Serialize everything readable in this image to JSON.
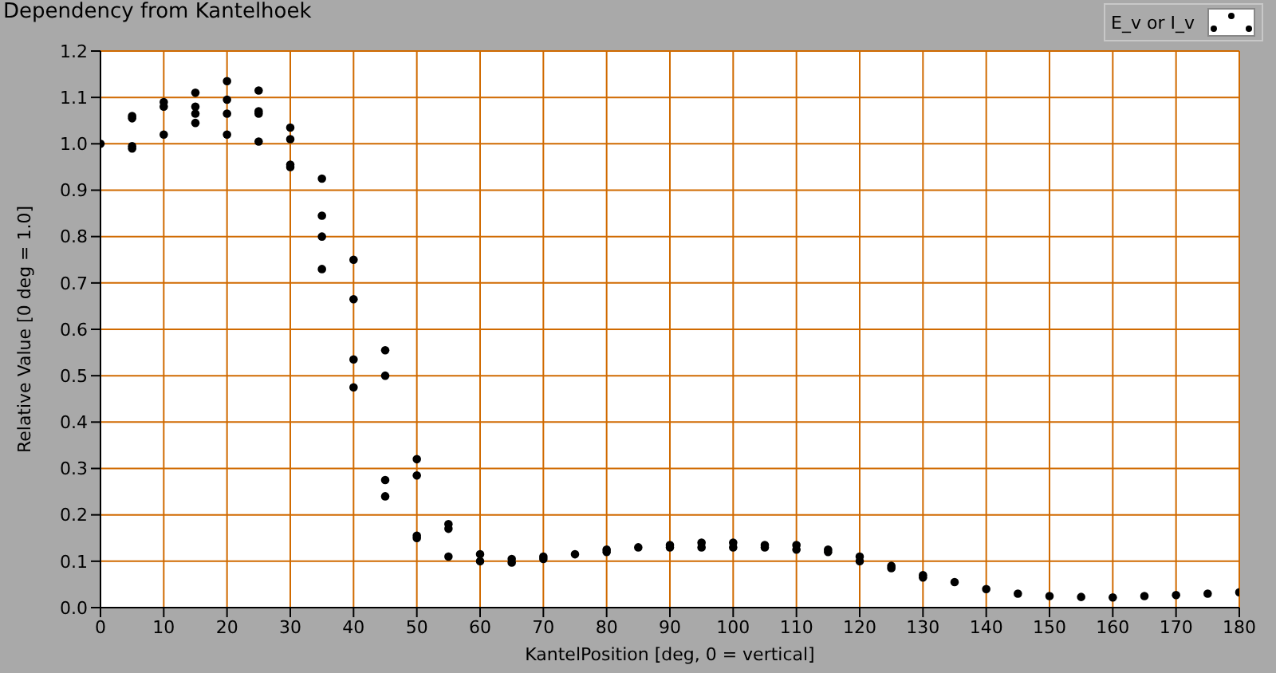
{
  "chart_data": {
    "type": "scatter",
    "title": "Dependency from Kantelhoek",
    "xlabel": "KantelPosition [deg, 0 = vertical]",
    "ylabel": "Relative Value [0 deg = 1.0]",
    "series": [
      {
        "name": "E_v or I_v",
        "color": "#000000",
        "x": [
          0,
          5,
          5,
          5,
          5,
          10,
          10,
          10,
          15,
          15,
          15,
          15,
          20,
          20,
          20,
          20,
          25,
          25,
          25,
          25,
          30,
          30,
          30,
          30,
          35,
          35,
          35,
          35,
          40,
          40,
          40,
          40,
          45,
          45,
          45,
          45,
          50,
          50,
          50,
          50,
          55,
          55,
          55,
          60,
          60,
          65,
          65,
          70,
          70,
          75,
          80,
          80,
          85,
          90,
          90,
          95,
          95,
          100,
          100,
          105,
          105,
          110,
          110,
          115,
          115,
          120,
          120,
          125,
          125,
          130,
          130,
          135,
          140,
          145,
          150,
          155,
          160,
          165,
          170,
          175,
          180
        ],
        "values": [
          1.0,
          1.06,
          1.055,
          0.99,
          0.995,
          1.09,
          1.08,
          1.02,
          1.11,
          1.08,
          1.065,
          1.045,
          1.135,
          1.095,
          1.065,
          1.02,
          1.115,
          1.07,
          1.065,
          1.005,
          1.035,
          1.01,
          0.955,
          0.95,
          0.925,
          0.845,
          0.8,
          0.73,
          0.75,
          0.665,
          0.535,
          0.475,
          0.555,
          0.5,
          0.275,
          0.24,
          0.32,
          0.285,
          0.155,
          0.15,
          0.18,
          0.17,
          0.11,
          0.115,
          0.1,
          0.105,
          0.097,
          0.11,
          0.105,
          0.115,
          0.125,
          0.12,
          0.13,
          0.135,
          0.13,
          0.14,
          0.13,
          0.14,
          0.13,
          0.135,
          0.13,
          0.135,
          0.125,
          0.125,
          0.12,
          0.11,
          0.1,
          0.09,
          0.085,
          0.07,
          0.065,
          0.055,
          0.04,
          0.03,
          0.025,
          0.023,
          0.022,
          0.025,
          0.027,
          0.03,
          0.033
        ]
      }
    ],
    "marker": "circle",
    "xlim": [
      0,
      180
    ],
    "xticks": [
      0,
      10,
      20,
      30,
      40,
      50,
      60,
      70,
      80,
      90,
      100,
      110,
      120,
      130,
      140,
      150,
      160,
      170,
      180
    ],
    "ylim": [
      0,
      1.2
    ],
    "yticks": [
      {
        "value": 0,
        "label": "0.0"
      },
      0.1,
      0.2,
      0.3,
      0.4,
      0.5,
      0.6,
      0.7,
      0.8,
      0.9,
      {
        "value": 1,
        "label": "1.0"
      },
      1.1,
      1.2
    ],
    "grid": true,
    "legend": "top right"
  }
}
